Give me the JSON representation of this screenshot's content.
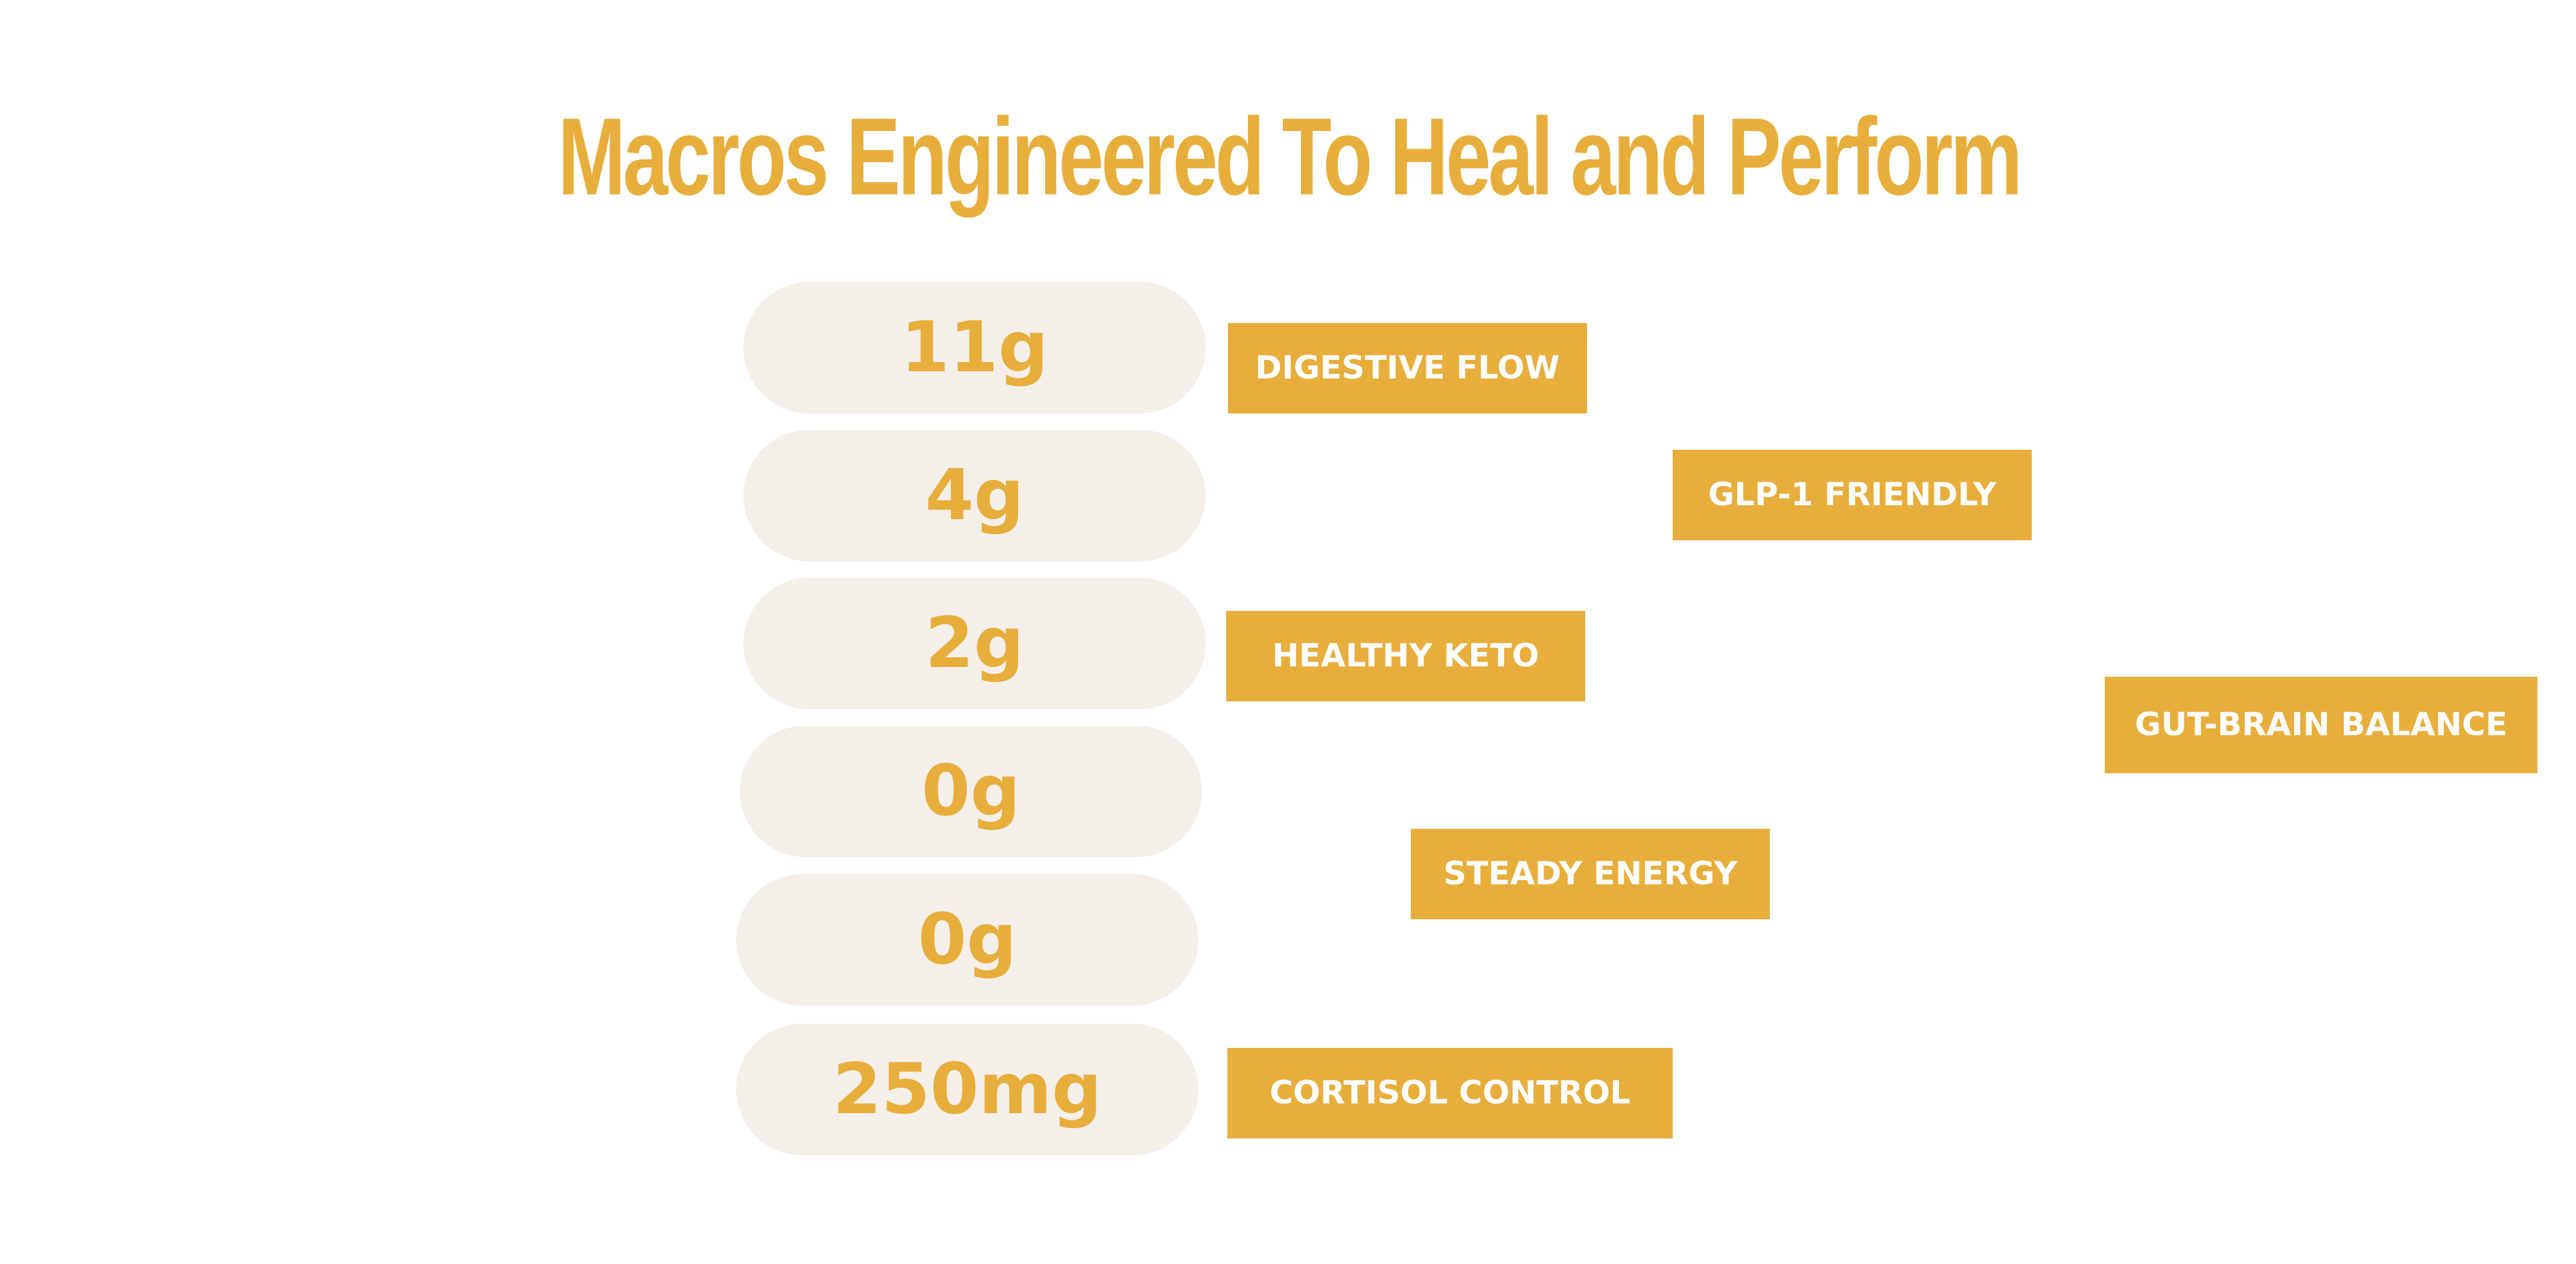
{
  "title": "Macros Engineered To Heal and Perform",
  "macros": [
    "11g",
    "4g",
    "2g",
    "0g",
    "0g",
    "250mg"
  ],
  "benefits": [
    "DIGESTIVE FLOW",
    "GLP-1 FRIENDLY",
    "HEALTHY KETO",
    "GUT-BRAIN BALANCE",
    "STEADY ENERGY",
    "CORTISOL CONTROL"
  ],
  "colors": {
    "accent": "#E8AE3C",
    "pill_background": "#F4EFE9",
    "tag_text": "#FFFFFF"
  }
}
